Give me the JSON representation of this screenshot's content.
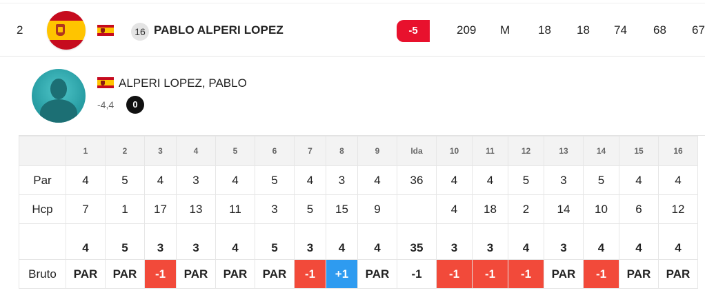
{
  "leaderboard_row": {
    "position": "2",
    "shirt_number": "16",
    "player": "PABLO ALPERI LOPEZ",
    "score_to_par": "-5",
    "total": "209",
    "status": "M",
    "thru": "18",
    "hole": "18",
    "r1": "74",
    "r2": "68",
    "r3": "67",
    "colors": {
      "score_badge": "#e8112d"
    }
  },
  "player_detail": {
    "full_name": "ALPERI LOPEZ, PABLO",
    "handicap": "-4,4",
    "badge": "0"
  },
  "scorecard": {
    "holes": [
      "1",
      "2",
      "3",
      "4",
      "5",
      "6",
      "7",
      "8",
      "9",
      "Ida",
      "10",
      "11",
      "12",
      "13",
      "14",
      "15",
      "16"
    ],
    "par_label": "Par",
    "par": [
      "4",
      "5",
      "4",
      "3",
      "4",
      "5",
      "4",
      "3",
      "4",
      "36",
      "4",
      "4",
      "5",
      "3",
      "5",
      "4",
      "4"
    ],
    "hcp_label": "Hcp",
    "hcp": [
      "7",
      "1",
      "17",
      "13",
      "11",
      "3",
      "5",
      "15",
      "9",
      "",
      "4",
      "18",
      "2",
      "14",
      "10",
      "6",
      "12"
    ],
    "gross_label": "Bruto",
    "gross": [
      "4",
      "5",
      "3",
      "3",
      "4",
      "5",
      "3",
      "4",
      "4",
      "35",
      "3",
      "3",
      "4",
      "3",
      "4",
      "4",
      "4"
    ],
    "result": [
      "PAR",
      "PAR",
      "-1",
      "PAR",
      "PAR",
      "PAR",
      "-1",
      "+1",
      "PAR",
      "-1",
      "-1",
      "-1",
      "-1",
      "PAR",
      "-1",
      "PAR",
      "PAR"
    ],
    "result_style": [
      "par",
      "par",
      "under",
      "par",
      "par",
      "par",
      "under",
      "over",
      "par",
      "plain",
      "under",
      "under",
      "under",
      "par",
      "under",
      "par",
      "par"
    ],
    "colors": {
      "under": "#f24a3a",
      "over": "#2e9bf0"
    }
  }
}
